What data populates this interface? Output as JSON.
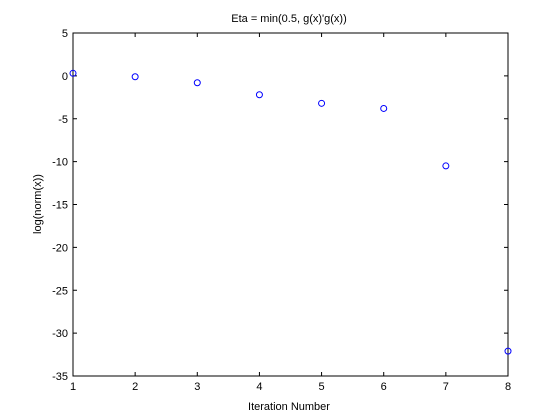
{
  "chart_data": {
    "type": "scatter",
    "title": "Eta = min(0.5, g(x)'g(x))",
    "xlabel": "Iteration Number",
    "ylabel": "log(norm(x))",
    "xlim": [
      1,
      8
    ],
    "ylim": [
      -35,
      5
    ],
    "xticks": [
      1,
      2,
      3,
      4,
      5,
      6,
      7,
      8
    ],
    "yticks": [
      5,
      0,
      -5,
      -10,
      -15,
      -20,
      -25,
      -30,
      -35
    ],
    "grid": false,
    "marker": "circle-open",
    "marker_color": "#0000ff",
    "series": [
      {
        "x": [
          1,
          2,
          3,
          4,
          5,
          6,
          7,
          8
        ],
        "y": [
          0.3,
          -0.1,
          -0.8,
          -2.2,
          -3.2,
          -3.8,
          -10.5,
          -32.1
        ]
      }
    ]
  }
}
